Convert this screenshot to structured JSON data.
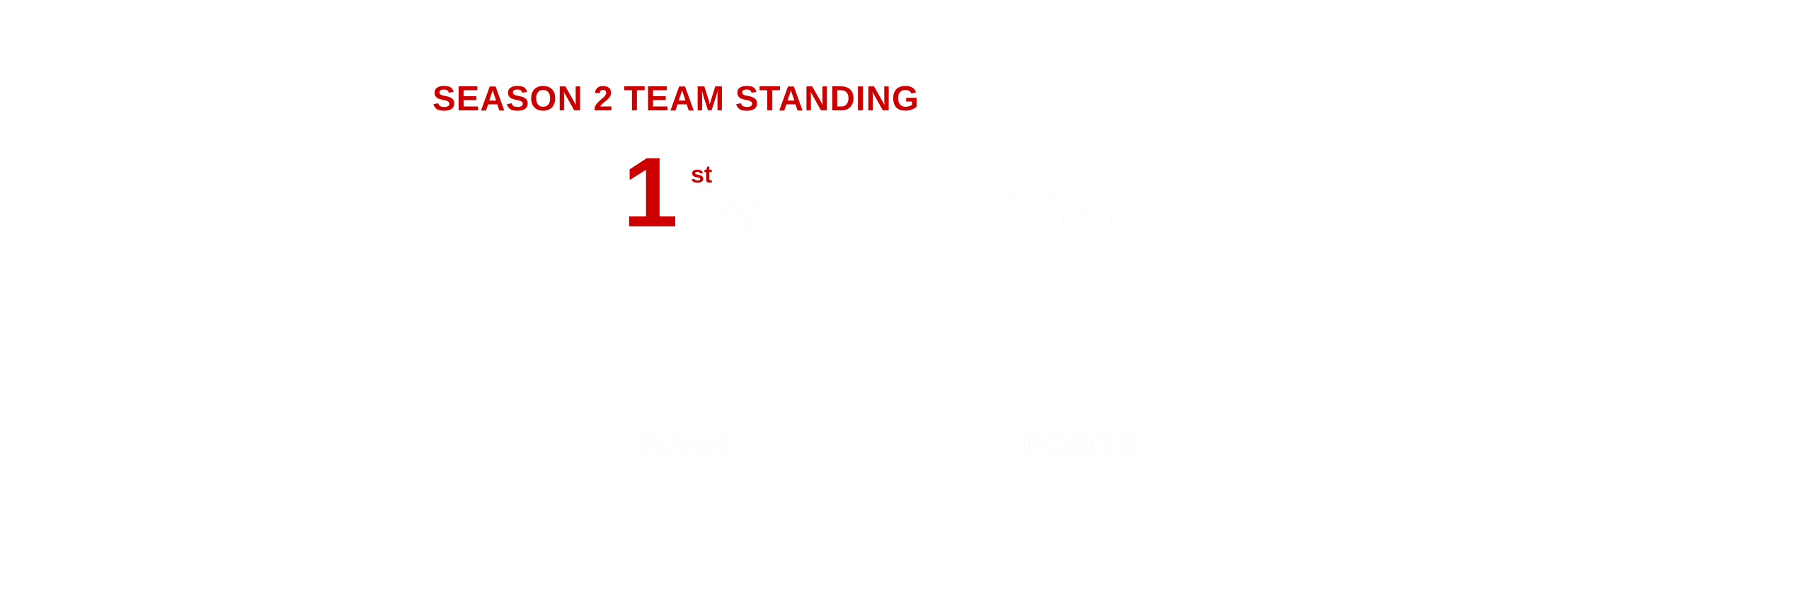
{
  "title": "SEASON 2 TEAM STANDING",
  "rank": {
    "value": "1",
    "suffix": "st",
    "total": "/6",
    "label": "RANK"
  },
  "points": {
    "value": "82",
    "label": "POINTS"
  },
  "colors": {
    "accent": "#cc0000",
    "background": "#ffffff",
    "stat_text": "#ffffff"
  }
}
